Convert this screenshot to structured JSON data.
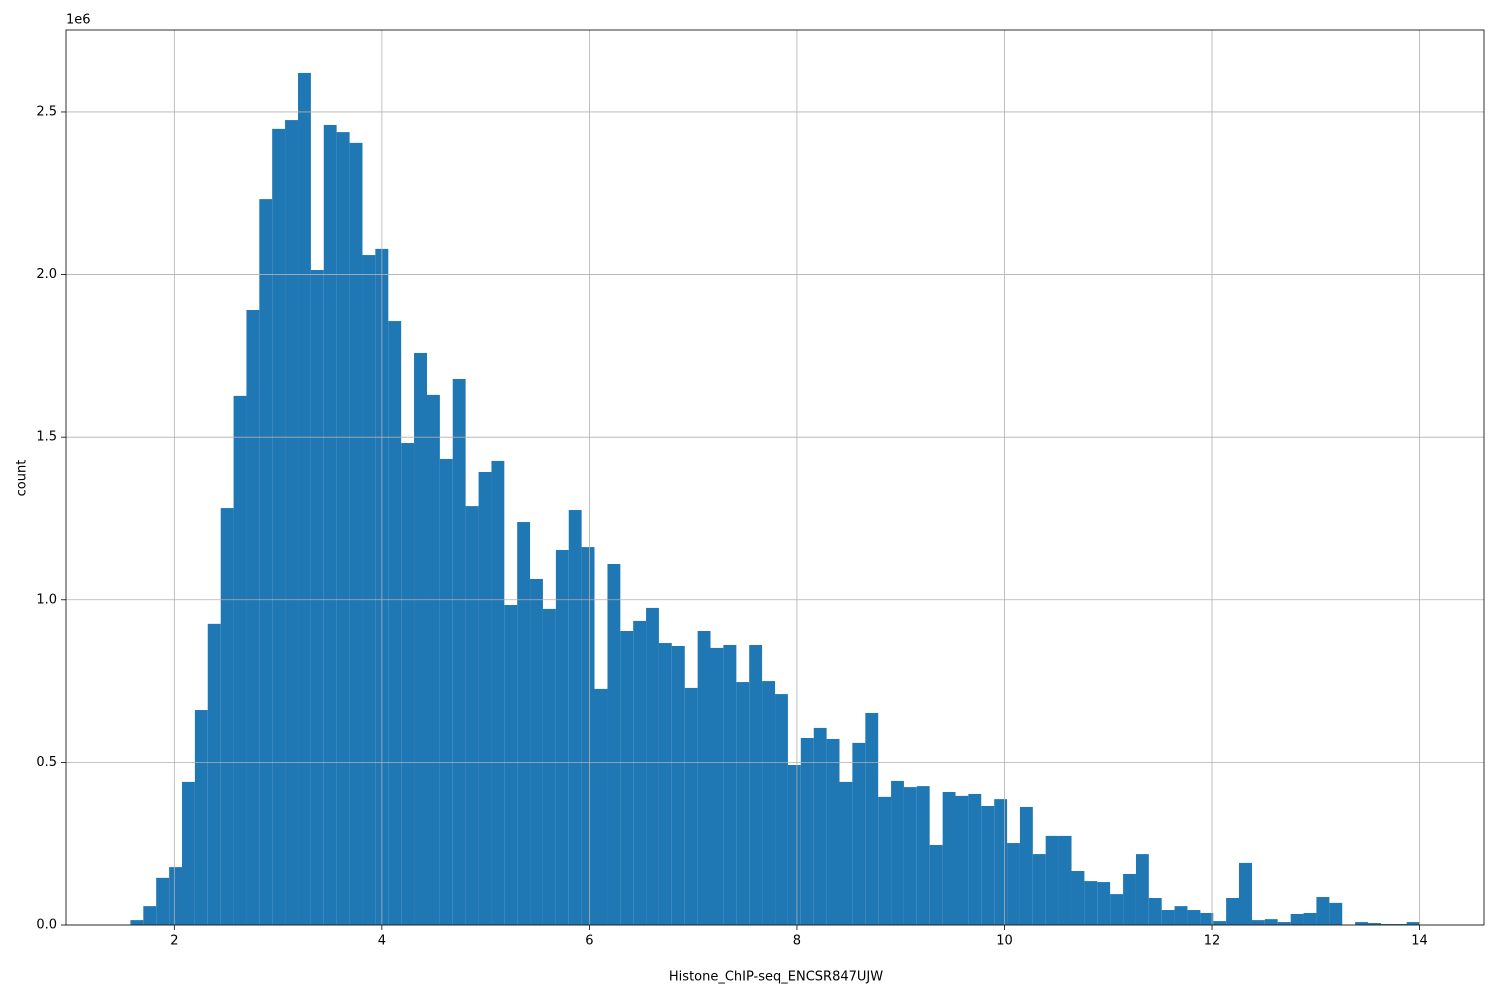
{
  "chart_data": {
    "type": "histogram",
    "xlabel": "Histone_ChIP-seq_ENCSR847UJW",
    "ylabel": "count",
    "y_offset_label": "1e6",
    "color": "#1f77b4",
    "grid": true,
    "bins": [
      1.577,
      1.701,
      1.825,
      1.95,
      2.074,
      2.198,
      2.322,
      2.447,
      2.571,
      2.695,
      2.819,
      2.943,
      3.067,
      3.192,
      3.316,
      3.44,
      3.564,
      3.689,
      3.813,
      3.937,
      4.062,
      4.186,
      4.31,
      4.435,
      4.559,
      4.683,
      4.807,
      4.932,
      5.056,
      5.18,
      5.304,
      5.428,
      5.552,
      5.677,
      5.801,
      5.925,
      6.049,
      6.174,
      6.298,
      6.422,
      6.546,
      6.67,
      6.794,
      6.919,
      7.043,
      7.167,
      7.291,
      7.416,
      7.54,
      7.664,
      7.789,
      7.913,
      8.037,
      8.162,
      8.286,
      8.41,
      8.534,
      8.659,
      8.783,
      8.907,
      9.031,
      9.155,
      9.279,
      9.404,
      9.528,
      9.652,
      9.776,
      9.901,
      10.025,
      10.149,
      10.273,
      10.397,
      10.521,
      10.646,
      10.77,
      10.894,
      11.018,
      11.143,
      11.267,
      11.391,
      11.515,
      11.639,
      11.763,
      11.888,
      12.012,
      12.136,
      12.26,
      12.385,
      12.509,
      12.633,
      12.758,
      12.882,
      13.006,
      13.131,
      13.255,
      13.379,
      13.503,
      13.628,
      13.752,
      13.876,
      14.0
    ],
    "values": [
      15000,
      58000,
      145000,
      178000,
      440000,
      661000,
      926000,
      1282000,
      1627000,
      1891000,
      2232000,
      2448000,
      2475000,
      2620000,
      2014000,
      2460000,
      2438000,
      2405000,
      2060000,
      2079000,
      1857000,
      1482000,
      1759000,
      1630000,
      1433000,
      1679000,
      1288000,
      1393000,
      1427000,
      984000,
      1239000,
      1064000,
      972000,
      1153000,
      1276000,
      1162000,
      726000,
      1110000,
      904000,
      935000,
      975000,
      867000,
      858000,
      729000,
      904000,
      852000,
      861000,
      747000,
      861000,
      750000,
      710000,
      492000,
      575000,
      606000,
      572000,
      440000,
      560000,
      652000,
      394000,
      443000,
      424000,
      427000,
      246000,
      409000,
      397000,
      403000,
      366000,
      387000,
      252000,
      363000,
      218000,
      274000,
      274000,
      166000,
      135000,
      132000,
      95000,
      157000,
      218000,
      83000,
      46000,
      58000,
      46000,
      37000,
      12000,
      83000,
      191000,
      15000,
      18000,
      9000,
      34000,
      37000,
      86000,
      68000,
      0,
      9000,
      6000,
      3000,
      3000,
      9000
    ],
    "xlim": [
      0.956,
      14.621
    ],
    "xticks": [
      2,
      4,
      6,
      8,
      10,
      12,
      14
    ],
    "ylim": [
      0,
      2752000
    ],
    "yticks": [
      {
        "value": 0,
        "label": "0.0"
      },
      {
        "value": 500000,
        "label": "0.5"
      },
      {
        "value": 1000000,
        "label": "1.0"
      },
      {
        "value": 1500000,
        "label": "1.5"
      },
      {
        "value": 2000000,
        "label": "2.0"
      },
      {
        "value": 2500000,
        "label": "2.5"
      }
    ]
  }
}
